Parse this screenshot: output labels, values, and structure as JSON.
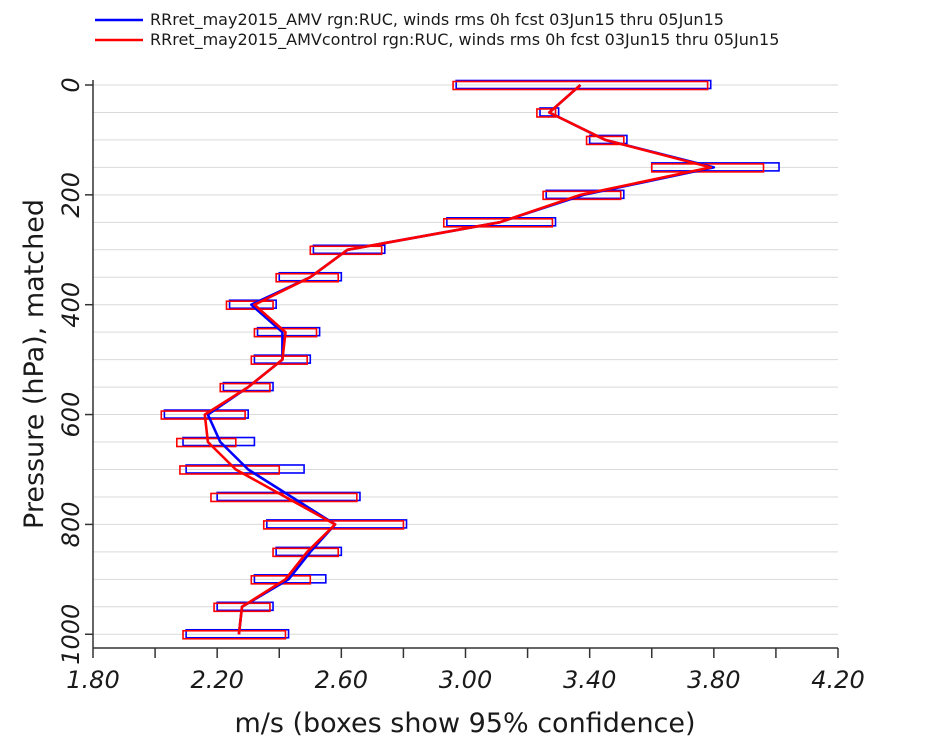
{
  "chart_data": {
    "type": "line",
    "legend_placement": "top",
    "xlabel": "m/s (boxes show 95% confidence)",
    "ylabel": "Pressure (hPa), matched",
    "xlim": [
      1.8,
      4.2
    ],
    "ylim": [
      1025,
      0
    ],
    "x_ticks": [
      "1.80",
      "2.20",
      "2.60",
      "3.00",
      "3.40",
      "3.80",
      "4.20"
    ],
    "y_ticks": [
      "0",
      "200",
      "400",
      "600",
      "800",
      "1000"
    ],
    "grid": true,
    "series": [
      {
        "name": "RRret_may2015_AMV rgn:RUC, winds rms 0h fcst  03Jun15 thru 05Jun15",
        "color": "#0000ff",
        "pressure": [
          0,
          50,
          100,
          150,
          200,
          250,
          300,
          350,
          400,
          450,
          500,
          550,
          600,
          650,
          700,
          750,
          800,
          850,
          900,
          950,
          1000
        ],
        "values": [
          3.37,
          3.27,
          3.45,
          3.8,
          3.38,
          3.11,
          2.62,
          2.5,
          2.31,
          2.41,
          2.41,
          2.3,
          2.17,
          2.21,
          2.3,
          2.44,
          2.58,
          2.5,
          2.43,
          2.28,
          2.27
        ],
        "ci_low": [
          2.97,
          3.24,
          3.4,
          3.6,
          3.26,
          2.94,
          2.51,
          2.4,
          2.24,
          2.33,
          2.32,
          2.22,
          2.03,
          2.09,
          2.1,
          2.2,
          2.36,
          2.39,
          2.32,
          2.2,
          2.1
        ],
        "ci_high": [
          3.79,
          3.3,
          3.52,
          4.01,
          3.51,
          3.29,
          2.74,
          2.6,
          2.39,
          2.53,
          2.5,
          2.38,
          2.3,
          2.32,
          2.48,
          2.66,
          2.81,
          2.6,
          2.55,
          2.38,
          2.43
        ]
      },
      {
        "name": "RRret_may2015_AMVcontrol rgn:RUC, winds rms 0h fcst  03Jun15 thru 05Jun15",
        "color": "#ff0000",
        "pressure": [
          0,
          50,
          100,
          150,
          200,
          250,
          300,
          350,
          400,
          450,
          500,
          550,
          600,
          650,
          700,
          750,
          800,
          850,
          900,
          950,
          1000
        ],
        "values": [
          3.37,
          3.27,
          3.45,
          3.79,
          3.37,
          3.11,
          2.62,
          2.5,
          2.32,
          2.42,
          2.41,
          2.3,
          2.16,
          2.17,
          2.26,
          2.42,
          2.58,
          2.49,
          2.42,
          2.28,
          2.27
        ],
        "ci_low": [
          2.96,
          3.23,
          3.39,
          3.6,
          3.25,
          2.93,
          2.5,
          2.39,
          2.23,
          2.32,
          2.31,
          2.21,
          2.02,
          2.07,
          2.08,
          2.18,
          2.35,
          2.38,
          2.31,
          2.19,
          2.09
        ],
        "ci_high": [
          3.78,
          3.29,
          3.51,
          3.96,
          3.5,
          3.28,
          2.73,
          2.59,
          2.38,
          2.52,
          2.49,
          2.37,
          2.29,
          2.26,
          2.4,
          2.65,
          2.8,
          2.59,
          2.5,
          2.37,
          2.42
        ]
      }
    ]
  }
}
